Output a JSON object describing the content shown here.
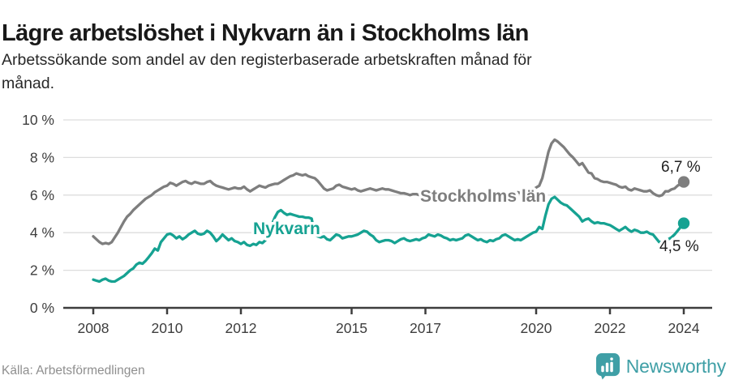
{
  "header": {
    "title": "Lägre arbetslöshet i Nykvarn än i Stockholms län",
    "subtitle_lines": [
      "Arbetssökande som andel av den registerbaserade arbetskraften månad för",
      "månad."
    ]
  },
  "footer": {
    "source": "Källa: Arbetsförmedlingen",
    "brand": "Newsworthy"
  },
  "colors": {
    "nykvarn": "#16a292",
    "stockholm": "#7e7e7e",
    "axis": "#3d3d3d",
    "grid": "#dddddd",
    "value_label": "#1f1f1f",
    "brand": "#3f9fa6",
    "background": "#ffffff"
  },
  "chart_data": {
    "type": "line",
    "title": "Lägre arbetslöshet i Nykvarn än i Stockholms län",
    "subtitle": "Arbetssökande som andel av den registerbaserade arbetskraften månad för månad.",
    "xlabel": "",
    "ylabel": "",
    "x_unit": "month",
    "x_start": "2008-01",
    "x_end": "2024-01",
    "x_ticks": [
      2008,
      2010,
      2012,
      2015,
      2017,
      2020,
      2022,
      2024
    ],
    "x_tick_labels": [
      "2008",
      "2010",
      "2012",
      "2015",
      "2017",
      "2020",
      "2022",
      "2024"
    ],
    "y_ticks": [
      0,
      2,
      4,
      6,
      8,
      10
    ],
    "y_tick_suffix": " %",
    "ylim": [
      0,
      10
    ],
    "grid": true,
    "legend": "inline-labels",
    "series": [
      {
        "name": "Stockholms län",
        "end_label": "6,7 %",
        "last_value": 6.7,
        "values": [
          3.8,
          3.65,
          3.5,
          3.4,
          3.45,
          3.4,
          3.5,
          3.75,
          4.0,
          4.3,
          4.6,
          4.85,
          5.0,
          5.2,
          5.35,
          5.5,
          5.65,
          5.8,
          5.9,
          6.0,
          6.15,
          6.25,
          6.35,
          6.45,
          6.5,
          6.65,
          6.6,
          6.5,
          6.6,
          6.7,
          6.75,
          6.65,
          6.6,
          6.7,
          6.65,
          6.6,
          6.6,
          6.7,
          6.75,
          6.6,
          6.5,
          6.45,
          6.4,
          6.35,
          6.3,
          6.35,
          6.4,
          6.35,
          6.35,
          6.45,
          6.3,
          6.2,
          6.3,
          6.4,
          6.5,
          6.45,
          6.4,
          6.5,
          6.55,
          6.6,
          6.6,
          6.7,
          6.8,
          6.9,
          7.0,
          7.05,
          7.15,
          7.1,
          7.05,
          7.1,
          7.0,
          6.95,
          6.9,
          6.75,
          6.55,
          6.35,
          6.25,
          6.3,
          6.35,
          6.5,
          6.55,
          6.45,
          6.4,
          6.35,
          6.3,
          6.35,
          6.25,
          6.2,
          6.25,
          6.3,
          6.35,
          6.3,
          6.25,
          6.3,
          6.35,
          6.3,
          6.3,
          6.25,
          6.2,
          6.15,
          6.1,
          6.1,
          6.05,
          6.0,
          6.05,
          6.05,
          6.0,
          6.0,
          6.0,
          5.95,
          5.95,
          5.9,
          5.9,
          5.95,
          6.0,
          5.95,
          5.9,
          5.85,
          5.85,
          5.9,
          5.9,
          5.85,
          5.8,
          5.8,
          5.75,
          5.8,
          5.85,
          5.8,
          5.75,
          5.8,
          5.85,
          5.9,
          5.9,
          5.95,
          6.0,
          6.0,
          6.05,
          6.1,
          6.15,
          6.1,
          6.15,
          6.2,
          6.25,
          6.3,
          6.4,
          6.5,
          6.9,
          7.6,
          8.3,
          8.75,
          8.95,
          8.85,
          8.7,
          8.55,
          8.35,
          8.15,
          8.0,
          7.8,
          7.6,
          7.7,
          7.45,
          7.2,
          7.15,
          6.9,
          6.85,
          6.75,
          6.7,
          6.7,
          6.65,
          6.6,
          6.55,
          6.45,
          6.4,
          6.45,
          6.3,
          6.25,
          6.35,
          6.3,
          6.25,
          6.2,
          6.2,
          6.25,
          6.1,
          6.0,
          5.95,
          6.0,
          6.2,
          6.2,
          6.3,
          6.35,
          6.5,
          6.6,
          6.7
        ]
      },
      {
        "name": "Nykvarn",
        "end_label": "4,5 %",
        "last_value": 4.5,
        "values": [
          1.5,
          1.45,
          1.4,
          1.5,
          1.55,
          1.45,
          1.4,
          1.4,
          1.5,
          1.6,
          1.7,
          1.85,
          2.0,
          2.1,
          2.3,
          2.4,
          2.35,
          2.5,
          2.7,
          2.9,
          3.15,
          3.05,
          3.5,
          3.7,
          3.9,
          3.95,
          3.85,
          3.7,
          3.8,
          3.65,
          3.75,
          3.9,
          4.0,
          4.1,
          3.95,
          3.9,
          3.95,
          4.1,
          4.0,
          3.8,
          3.55,
          3.7,
          3.9,
          3.75,
          3.6,
          3.7,
          3.55,
          3.5,
          3.4,
          3.5,
          3.35,
          3.3,
          3.4,
          3.35,
          3.5,
          3.45,
          3.6,
          4.0,
          4.4,
          4.8,
          5.1,
          5.2,
          5.05,
          4.95,
          5.0,
          4.95,
          4.9,
          4.85,
          4.85,
          4.8,
          4.8,
          4.75,
          3.9,
          3.8,
          3.75,
          3.8,
          3.65,
          3.6,
          3.75,
          3.9,
          3.85,
          3.7,
          3.75,
          3.8,
          3.8,
          3.85,
          3.9,
          4.0,
          4.1,
          4.05,
          3.9,
          3.8,
          3.6,
          3.5,
          3.55,
          3.6,
          3.6,
          3.55,
          3.45,
          3.55,
          3.65,
          3.7,
          3.6,
          3.55,
          3.6,
          3.65,
          3.6,
          3.7,
          3.75,
          3.9,
          3.85,
          3.8,
          3.9,
          3.85,
          3.75,
          3.7,
          3.6,
          3.65,
          3.6,
          3.65,
          3.7,
          3.85,
          3.9,
          3.8,
          3.7,
          3.6,
          3.65,
          3.55,
          3.5,
          3.6,
          3.55,
          3.65,
          3.7,
          3.85,
          3.9,
          3.8,
          3.7,
          3.6,
          3.65,
          3.6,
          3.7,
          3.8,
          3.9,
          4.0,
          4.05,
          4.3,
          4.2,
          4.9,
          5.5,
          5.8,
          5.9,
          5.75,
          5.6,
          5.5,
          5.45,
          5.3,
          5.15,
          5.0,
          4.85,
          4.6,
          4.7,
          4.75,
          4.6,
          4.5,
          4.55,
          4.5,
          4.5,
          4.45,
          4.4,
          4.3,
          4.2,
          4.1,
          4.2,
          4.3,
          4.15,
          4.05,
          4.15,
          4.1,
          4.0,
          4.0,
          4.05,
          3.95,
          3.9,
          3.7,
          3.5,
          3.5,
          3.6,
          3.65,
          3.75,
          3.9,
          4.1,
          4.3,
          4.5
        ]
      }
    ]
  }
}
